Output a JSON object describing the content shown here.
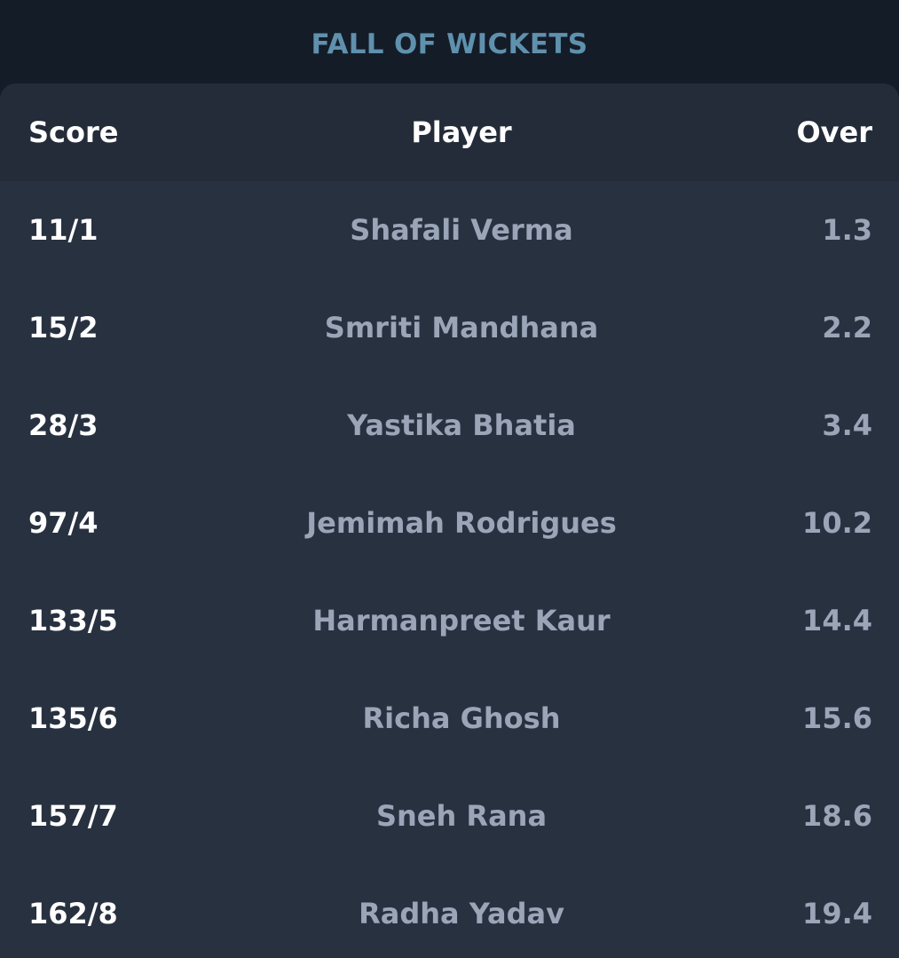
{
  "section": {
    "title": "FALL OF WICKETS"
  },
  "table": {
    "headers": {
      "score": "Score",
      "player": "Player",
      "over": "Over"
    },
    "rows": [
      {
        "score": "11/1",
        "player": "Shafali Verma",
        "over": "1.3"
      },
      {
        "score": "15/2",
        "player": "Smriti Mandhana",
        "over": "2.2"
      },
      {
        "score": "28/3",
        "player": "Yastika Bhatia",
        "over": "3.4"
      },
      {
        "score": "97/4",
        "player": "Jemimah Rodrigues",
        "over": "10.2"
      },
      {
        "score": "133/5",
        "player": "Harmanpreet Kaur",
        "over": "14.4"
      },
      {
        "score": "135/6",
        "player": "Richa Ghosh",
        "over": "15.6"
      },
      {
        "score": "157/7",
        "player": "Sneh Rana",
        "over": "18.6"
      },
      {
        "score": "162/8",
        "player": "Radha Yadav",
        "over": "19.4"
      }
    ]
  },
  "colors": {
    "background": "#141c28",
    "card": "#283140",
    "header": "#242c39",
    "title": "#5f91ad",
    "primary_text": "#ffffff",
    "secondary_text": "#9ba5b8"
  }
}
